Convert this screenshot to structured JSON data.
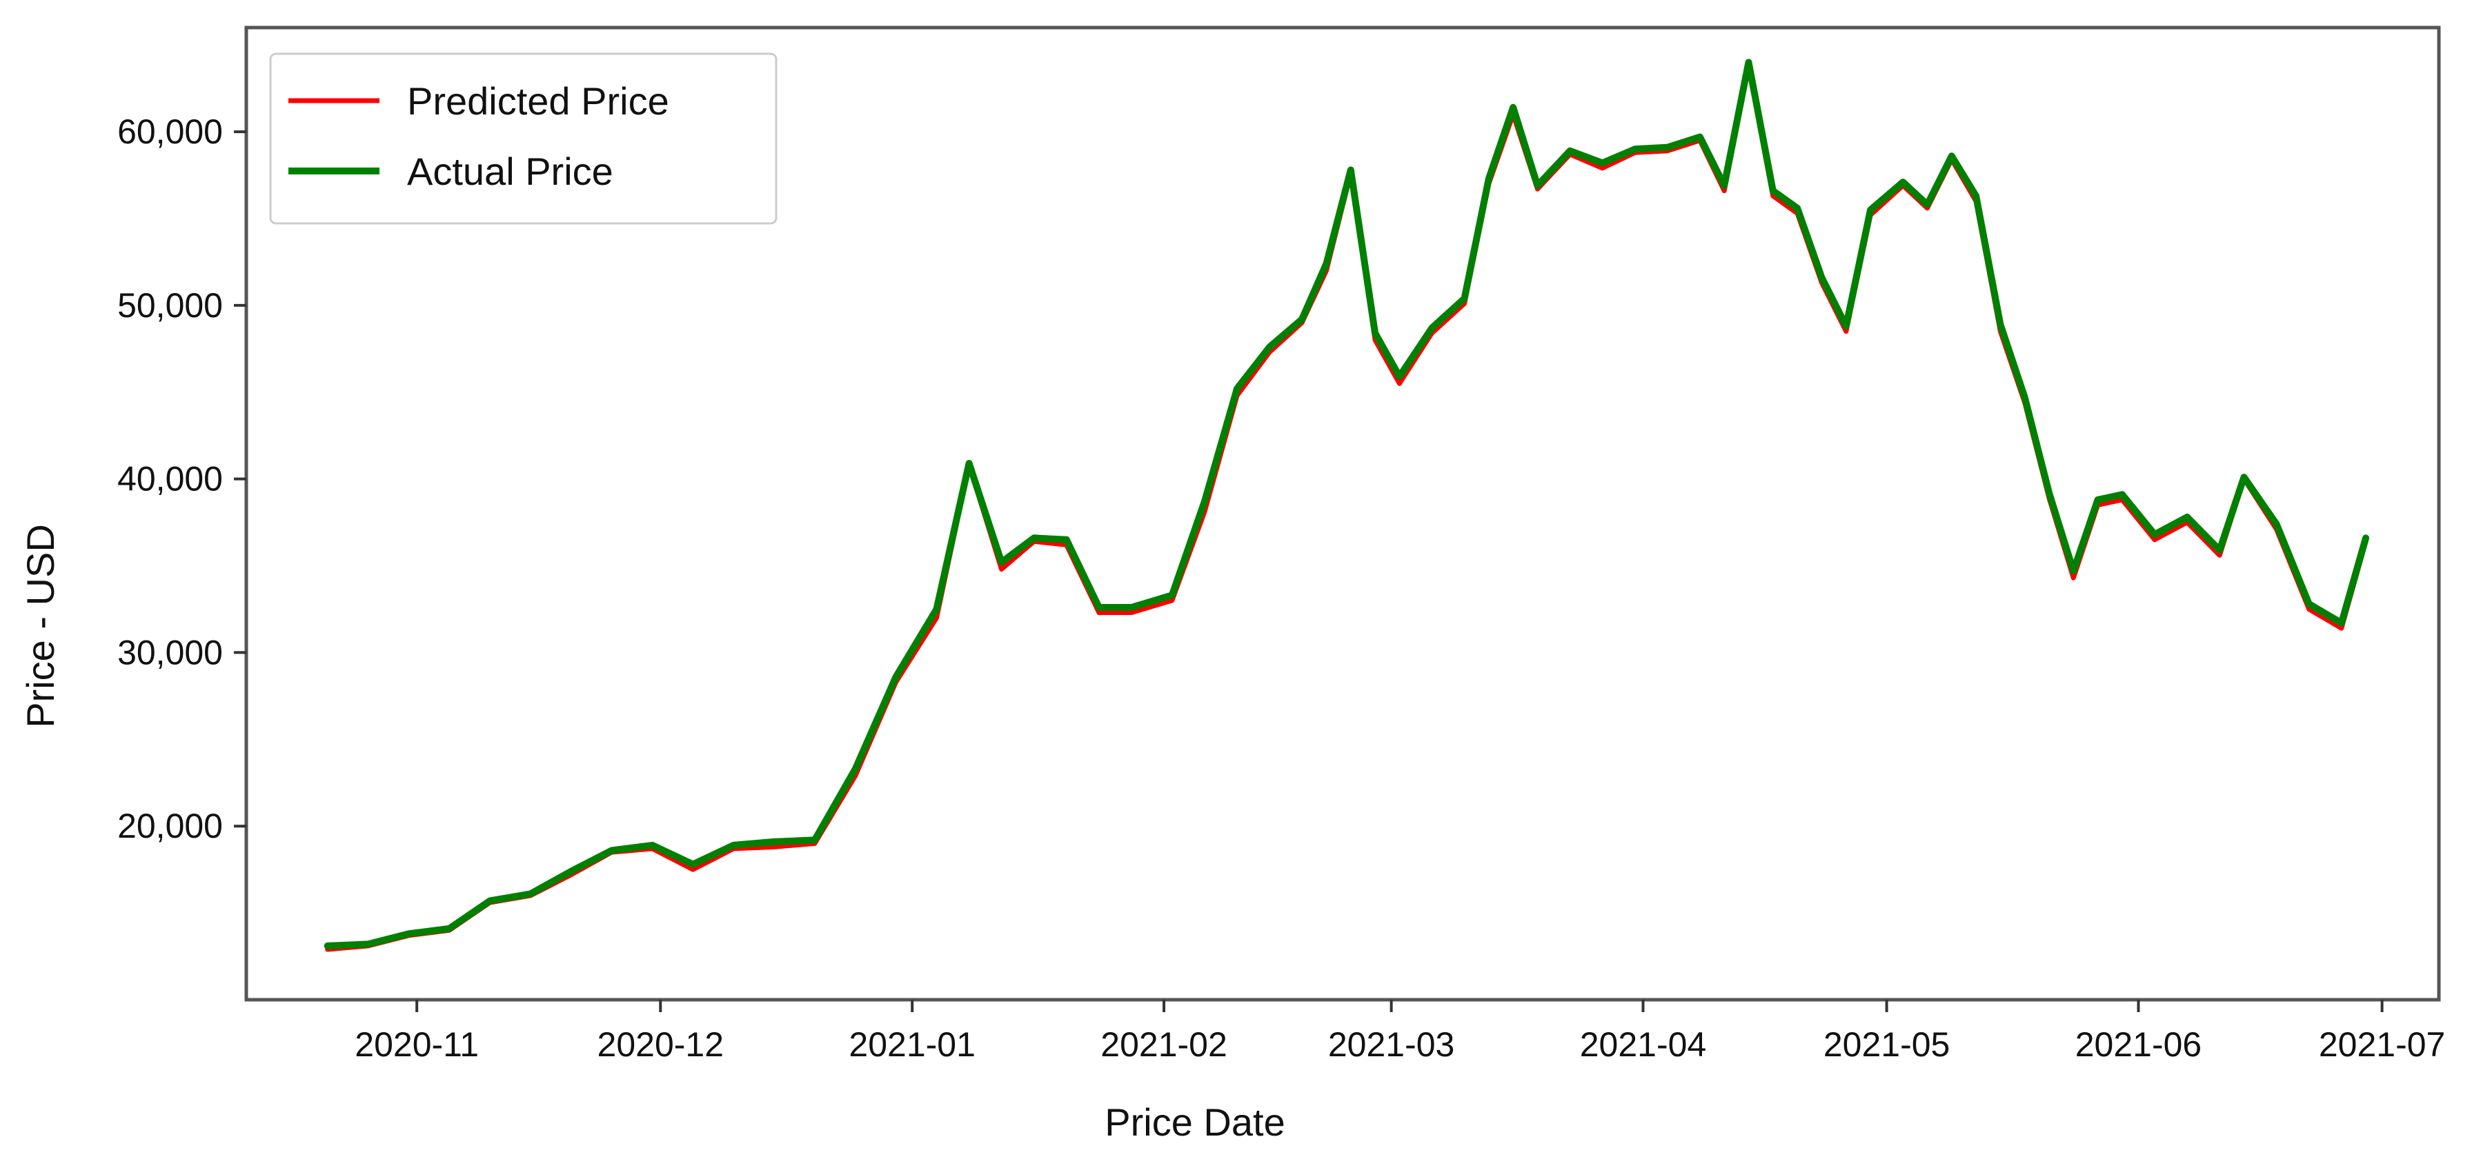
{
  "chart_data": {
    "type": "line",
    "title": "",
    "xlabel": "Price Date",
    "ylabel": "Price - USD",
    "x_ticks": [
      "2020-11",
      "2020-12",
      "2021-01",
      "2021-02",
      "2021-03",
      "2021-04",
      "2021-05",
      "2021-06",
      "2021-07"
    ],
    "y_ticks": [
      "20,000",
      "30,000",
      "40,000",
      "50,000",
      "60,000"
    ],
    "y_tick_values": [
      20000,
      30000,
      40000,
      50000,
      60000
    ],
    "xlim": [
      "2020-10-11",
      "2021-07-08"
    ],
    "ylim": [
      10000,
      66000
    ],
    "grid": false,
    "legend_position": "top-left",
    "x": [
      "2020-10-21",
      "2020-10-26",
      "2020-10-31",
      "2020-11-05",
      "2020-11-10",
      "2020-11-15",
      "2020-11-20",
      "2020-11-25",
      "2020-11-30",
      "2020-12-05",
      "2020-12-10",
      "2020-12-15",
      "2020-12-20",
      "2020-12-25",
      "2020-12-30",
      "2021-01-04",
      "2021-01-08",
      "2021-01-12",
      "2021-01-16",
      "2021-01-20",
      "2021-01-24",
      "2021-01-28",
      "2021-02-02",
      "2021-02-06",
      "2021-02-10",
      "2021-02-14",
      "2021-02-18",
      "2021-02-21",
      "2021-02-24",
      "2021-02-27",
      "2021-03-02",
      "2021-03-06",
      "2021-03-10",
      "2021-03-13",
      "2021-03-16",
      "2021-03-19",
      "2021-03-23",
      "2021-03-27",
      "2021-03-31",
      "2021-04-04",
      "2021-04-08",
      "2021-04-11",
      "2021-04-14",
      "2021-04-17",
      "2021-04-20",
      "2021-04-23",
      "2021-04-26",
      "2021-04-29",
      "2021-05-03",
      "2021-05-06",
      "2021-05-09",
      "2021-05-12",
      "2021-05-15",
      "2021-05-18",
      "2021-05-21",
      "2021-05-24",
      "2021-05-27",
      "2021-05-30",
      "2021-06-03",
      "2021-06-07",
      "2021-06-11",
      "2021-06-14",
      "2021-06-18",
      "2021-06-22",
      "2021-06-26",
      "2021-06-29"
    ],
    "series": [
      {
        "name": "Predicted Price",
        "color": "#ff0000",
        "values": [
          12900,
          13100,
          13700,
          14000,
          15600,
          16000,
          17200,
          18500,
          18700,
          17500,
          18700,
          18800,
          19000,
          22900,
          28300,
          32000,
          40800,
          34800,
          36400,
          36200,
          32300,
          32300,
          33000,
          38100,
          44800,
          47300,
          49000,
          52000,
          57600,
          48000,
          45500,
          48400,
          50100,
          57000,
          61000,
          56700,
          58700,
          57900,
          58800,
          58900,
          59500,
          56600,
          63800,
          56300,
          55300,
          51300,
          48500,
          55200,
          56900,
          55600,
          58400,
          56000,
          48500,
          44400,
          38900,
          34300,
          38500,
          38800,
          36500,
          37500,
          35600,
          40000,
          37100,
          32500,
          31400,
          36400
        ]
      },
      {
        "name": "Actual Price",
        "color": "#008000",
        "values": [
          13100,
          13200,
          13800,
          14100,
          15700,
          16100,
          17400,
          18600,
          18900,
          17800,
          18900,
          19100,
          19200,
          23300,
          28600,
          32500,
          40900,
          35200,
          36600,
          36500,
          32600,
          32600,
          33300,
          38700,
          45200,
          47600,
          49200,
          52400,
          57800,
          48400,
          45900,
          48700,
          50400,
          57300,
          61400,
          56900,
          58900,
          58200,
          59000,
          59100,
          59700,
          56900,
          64000,
          56600,
          55600,
          51600,
          48800,
          55500,
          57100,
          55800,
          58600,
          56300,
          48900,
          44700,
          39200,
          34700,
          38800,
          39100,
          36800,
          37800,
          35900,
          40100,
          37400,
          32800,
          31700,
          36600
        ]
      }
    ]
  }
}
